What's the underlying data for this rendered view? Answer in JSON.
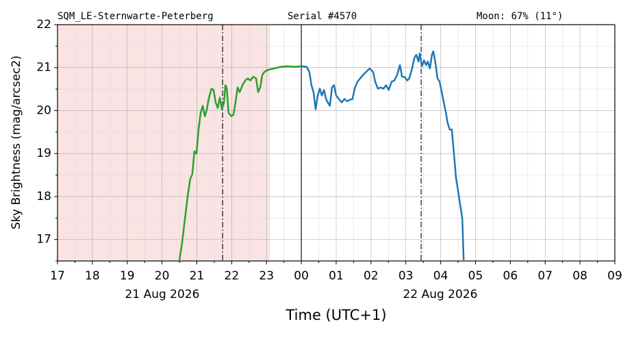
{
  "chart_data": {
    "type": "line",
    "header": [
      "SQM_LE-Sternwarte-Peterberg",
      "Serial #4570",
      "Moon: 67% (11°)"
    ],
    "ylabel": "Sky Brightness (mag/arcsec2)",
    "xlabel": "Time (UTC+1)",
    "date_labels": [
      "21 Aug 2026",
      "22 Aug 2026"
    ],
    "xlim": [
      17,
      33
    ],
    "ylim": [
      16.5,
      22
    ],
    "xticks": [
      17,
      18,
      19,
      20,
      21,
      22,
      23,
      {
        "value": 24,
        "label": "00"
      },
      {
        "value": 25,
        "label": "01"
      },
      {
        "value": 26,
        "label": "02"
      },
      {
        "value": 27,
        "label": "03"
      },
      {
        "value": 28,
        "label": "04"
      },
      {
        "value": 29,
        "label": "05"
      },
      {
        "value": 30,
        "label": "06"
      },
      {
        "value": 31,
        "label": "07"
      },
      {
        "value": 32,
        "label": "08"
      },
      {
        "value": 33,
        "label": "09"
      }
    ],
    "yticks": [
      17,
      18,
      19,
      20,
      21,
      22
    ],
    "xticks_minor": [
      17.5,
      18.5,
      19.5,
      20.5,
      21.5,
      22.5,
      23.5,
      24.5,
      25.5,
      26.5,
      27.5,
      28.5,
      29.5,
      30.5,
      31.5,
      32.5
    ],
    "yticks_minor": [
      16.5,
      17.5,
      18.5,
      19.5,
      20.5,
      21.5
    ],
    "grid": true,
    "shade": {
      "xlim": [
        17,
        23.1
      ],
      "color": "#f9e3e3"
    },
    "vlines": [
      {
        "x": 21.74,
        "style": "dashdot"
      },
      {
        "x": 24,
        "style": "solid"
      },
      {
        "x": 27.44,
        "style": "dashdot"
      }
    ],
    "series": [
      {
        "color": "#2ca02c",
        "x": [
          20.5,
          20.58,
          20.66,
          20.73,
          20.81,
          20.87,
          20.93,
          20.99,
          21.05,
          21.11,
          21.17,
          21.23,
          21.28,
          21.34,
          21.42,
          21.48,
          21.54,
          21.6,
          21.66,
          21.72,
          21.78,
          21.82,
          21.86,
          21.91,
          21.99,
          22.05,
          22.11,
          22.17,
          22.23,
          22.31,
          22.39,
          22.46,
          22.54,
          22.62,
          22.7,
          22.76,
          22.82,
          22.88,
          22.94,
          23.05,
          23.21,
          23.41,
          23.6,
          23.8,
          24
        ],
        "values": [
          16.52,
          16.94,
          17.49,
          17.97,
          18.41,
          18.52,
          19.05,
          19,
          19.56,
          19.95,
          20.11,
          19.87,
          20,
          20.27,
          20.51,
          20.48,
          20.19,
          20.06,
          20.3,
          20.03,
          20.19,
          20.59,
          20.51,
          19.95,
          19.87,
          19.9,
          20.19,
          20.54,
          20.43,
          20.59,
          20.7,
          20.75,
          20.7,
          20.79,
          20.75,
          20.43,
          20.54,
          20.83,
          20.9,
          20.95,
          20.98,
          21.02,
          21.03,
          21.02,
          21.03
        ]
      },
      {
        "color": "#1f77b4",
        "x": [
          24,
          24.15,
          24.23,
          24.29,
          24.35,
          24.41,
          24.47,
          24.53,
          24.59,
          24.65,
          24.71,
          24.76,
          24.82,
          24.88,
          24.94,
          25,
          25.08,
          25.16,
          25.24,
          25.31,
          25.39,
          25.47,
          25.53,
          25.61,
          25.69,
          25.77,
          25.86,
          25.96,
          26.06,
          26.12,
          26.2,
          26.28,
          26.36,
          26.43,
          26.51,
          26.59,
          26.67,
          26.75,
          26.83,
          26.89,
          26.97,
          27.04,
          27.1,
          27.18,
          27.24,
          27.3,
          27.36,
          27.4,
          27.46,
          27.52,
          27.58,
          27.63,
          27.69,
          27.75,
          27.79,
          27.85,
          27.91,
          27.97,
          28.03,
          28.09,
          28.15,
          28.2,
          28.26,
          28.32,
          28.38,
          28.44,
          28.5,
          28.56,
          28.62,
          28.66
        ],
        "values": [
          21.03,
          21.02,
          20.9,
          20.59,
          20.43,
          20.03,
          20.35,
          20.51,
          20.35,
          20.48,
          20.27,
          20.19,
          20.11,
          20.54,
          20.59,
          20.35,
          20.27,
          20.19,
          20.27,
          20.22,
          20.25,
          20.27,
          20.51,
          20.67,
          20.75,
          20.83,
          20.9,
          20.98,
          20.9,
          20.67,
          20.51,
          20.54,
          20.51,
          20.59,
          20.48,
          20.67,
          20.7,
          20.83,
          21.06,
          20.79,
          20.78,
          20.7,
          20.75,
          20.98,
          21.22,
          21.3,
          21.14,
          21.33,
          21.03,
          21.17,
          21.06,
          21.14,
          20.98,
          21.3,
          21.38,
          21.11,
          20.75,
          20.67,
          20.43,
          20.19,
          19.95,
          19.71,
          19.56,
          19.56,
          19,
          18.44,
          18.13,
          17.81,
          17.49,
          16.52
        ]
      }
    ]
  }
}
